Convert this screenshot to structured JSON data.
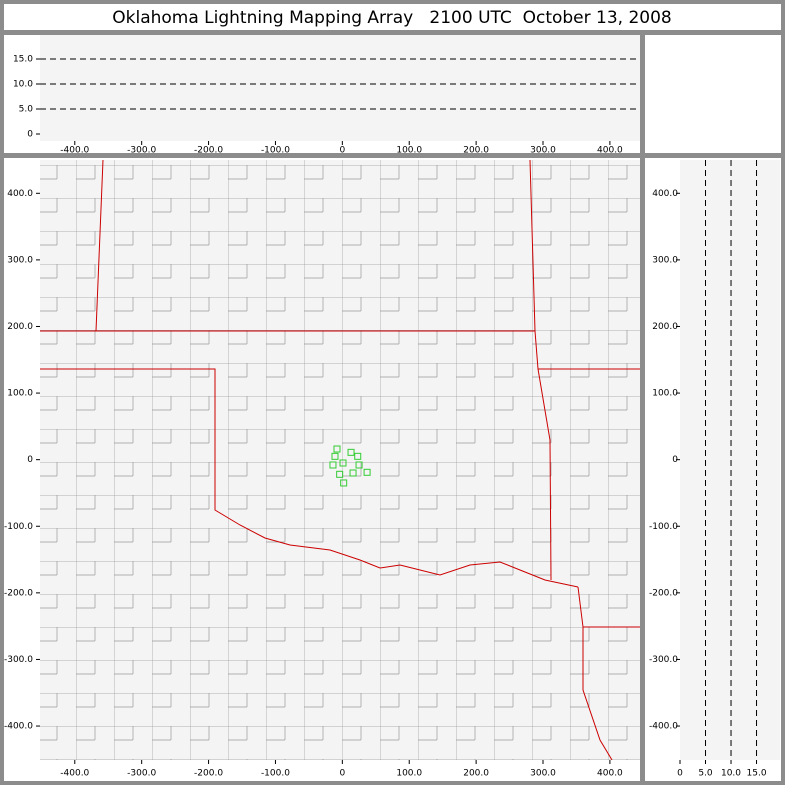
{
  "chart_data": [
    {
      "type": "scatter",
      "xlim": [
        -452,
        445
      ],
      "ylim": [
        0,
        20
      ],
      "xticks": [
        {
          "value": -400,
          "label": "-400.0"
        },
        {
          "value": -300,
          "label": "-300.0"
        },
        {
          "value": -200,
          "label": "-200.0"
        },
        {
          "value": -100,
          "label": "-100.0"
        },
        0,
        {
          "value": 100,
          "label": "100.0"
        },
        {
          "value": 200,
          "label": "200.0"
        },
        {
          "value": 300,
          "label": "300.0"
        },
        {
          "value": 400,
          "label": "400.0"
        }
      ],
      "yticks": [
        0,
        {
          "value": 5,
          "label": "5.0"
        },
        {
          "value": 10,
          "label": "10.0"
        },
        {
          "value": 15,
          "label": "15.0"
        }
      ],
      "grid": "y"
    },
    {
      "type": "scatter",
      "title": "Oklahoma Lightning Mapping Array   2100 UTC  October 13, 2008",
      "xlim": [
        -452,
        445
      ],
      "ylim": [
        -451,
        450
      ],
      "xticks": [
        {
          "value": -400,
          "label": "-400.0"
        },
        {
          "value": -300,
          "label": "-300.0"
        },
        {
          "value": -200,
          "label": "-200.0"
        },
        {
          "value": -100,
          "label": "-100.0"
        },
        0,
        {
          "value": 100,
          "label": "100.0"
        },
        {
          "value": 200,
          "label": "200.0"
        },
        {
          "value": 300,
          "label": "300.0"
        },
        {
          "value": 400,
          "label": "400.0"
        }
      ],
      "yticks": [
        {
          "value": 400,
          "label": "400.0"
        },
        {
          "value": 300,
          "label": "300.0"
        },
        {
          "value": 200,
          "label": "200.0"
        },
        {
          "value": 100,
          "label": "100.0"
        },
        0,
        {
          "value": -100,
          "label": "-100.0"
        },
        {
          "value": -200,
          "label": "-200.0"
        },
        {
          "value": -300,
          "label": "-300.0"
        },
        {
          "value": -400,
          "label": "-400.0"
        }
      ],
      "color": "#33cc33",
      "x": [
        -8,
        -11,
        -14,
        1,
        13,
        23,
        25,
        16,
        -4,
        2,
        37
      ],
      "values": [
        16,
        5,
        -8,
        -5,
        11,
        5,
        -8,
        -20,
        -22,
        -35,
        -19
      ]
    },
    {
      "type": "scatter",
      "xlim": [
        0,
        19.6
      ],
      "ylim": [
        -451,
        450
      ],
      "xticks": [
        0,
        {
          "value": 5,
          "label": "5.0"
        },
        {
          "value": 10,
          "label": "10.0"
        },
        {
          "value": 15,
          "label": "15.0"
        }
      ],
      "yticks": [
        {
          "value": 400,
          "label": "400.0"
        },
        {
          "value": 300,
          "label": "300.0"
        },
        {
          "value": 200,
          "label": "200.0"
        },
        {
          "value": 100,
          "label": "100.0"
        },
        0,
        {
          "value": -100,
          "label": "-100.0"
        },
        {
          "value": -200,
          "label": "-200.0"
        },
        {
          "value": -300,
          "label": "-300.0"
        },
        {
          "value": -400,
          "label": "-400.0"
        }
      ],
      "grid": "x"
    }
  ]
}
